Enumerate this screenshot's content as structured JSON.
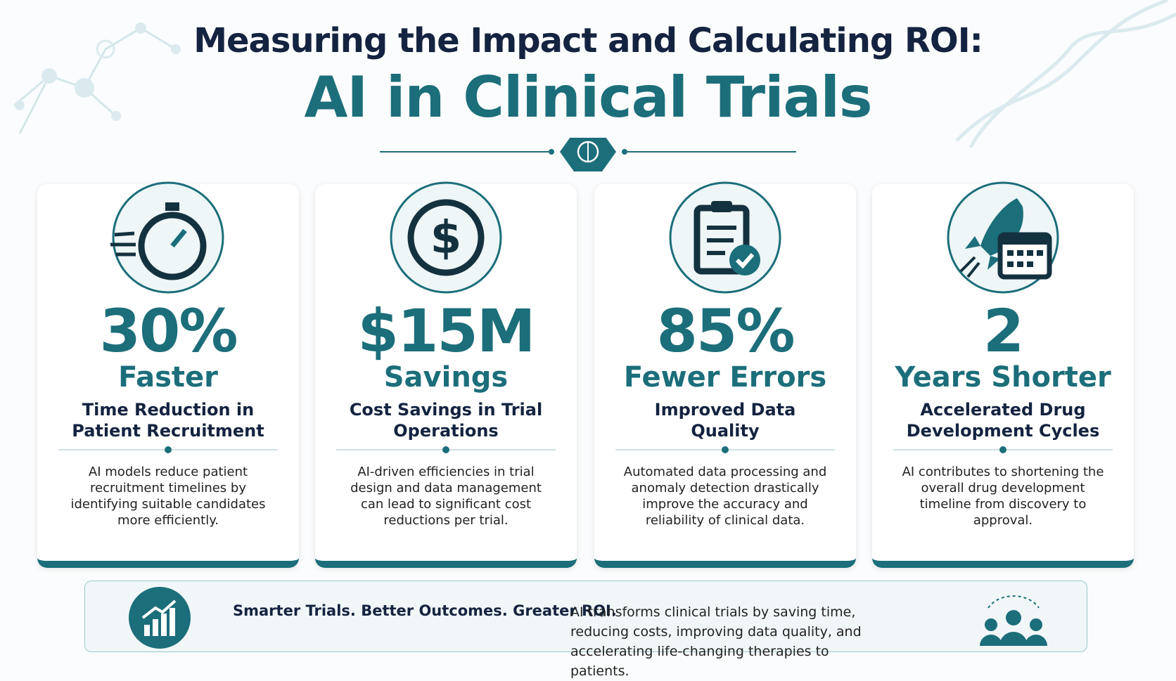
{
  "header": {
    "title": "Measuring the Impact and Calculating ROI:",
    "subtitle": "AI in Clinical Trials"
  },
  "cards": [
    {
      "stat": "30%",
      "stat_label": "Faster",
      "heading": "Time Reduction in Patient Recruitment",
      "body": "AI models reduce patient recruitment timelines by identifying suitable candidates more efficiently."
    },
    {
      "stat": "$15M",
      "stat_label": "Savings",
      "heading": "Cost Savings in Trial Operations",
      "body": "AI-driven efficiencies in trial design and data management can lead to significant cost reductions per trial."
    },
    {
      "stat": "85%",
      "stat_label": "Fewer Errors",
      "heading": "Improved Data Quality",
      "body": "Automated data processing and anomaly detection drastically improve the accuracy and reliability of clinical data."
    },
    {
      "stat": "2",
      "stat_label": "Years Shorter",
      "heading": "Accelerated Drug Development Cycles",
      "body": "AI contributes to shortening the overall drug development timeline from discovery to approval."
    }
  ],
  "footer": {
    "tagline": "Smarter Trials. Better Outcomes. Greater ROI.",
    "text": "AI transforms clinical trials by saving time, reducing costs, improving data quality, and accelerating life-changing therapies to patients."
  }
}
